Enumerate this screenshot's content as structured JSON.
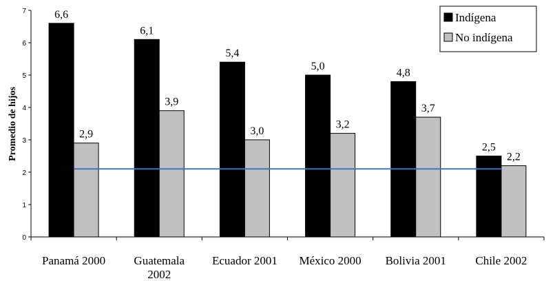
{
  "chart_data": {
    "type": "bar",
    "title": "",
    "xlabel": "",
    "ylabel": "Promedio de hijos",
    "ylim": [
      0,
      7
    ],
    "y_ticks": [
      0,
      1,
      2,
      3,
      4,
      5,
      6,
      7
    ],
    "categories": [
      [
        "Panamá 2000"
      ],
      [
        "Guatemala",
        "2002"
      ],
      [
        "Ecuador 2001"
      ],
      [
        "México 2000"
      ],
      [
        "Bolivia 2001"
      ],
      [
        "Chile 2002"
      ]
    ],
    "series": [
      {
        "name": "Indígena",
        "color": "#000000",
        "values": [
          6.6,
          6.1,
          5.4,
          5.0,
          4.8,
          2.5
        ],
        "labels": [
          "6,6",
          "6,1",
          "5,4",
          "5,0",
          "4,8",
          "2,5"
        ]
      },
      {
        "name": "No indígena",
        "color": "#c0c0c0",
        "values": [
          2.9,
          3.9,
          3.0,
          3.2,
          3.7,
          2.2
        ],
        "labels": [
          "2,9",
          "3,9",
          "3,0",
          "3,2",
          "3,7",
          "2,2"
        ]
      }
    ],
    "reference_line": {
      "value": 2.1,
      "color": "#4472c4"
    },
    "legend": {
      "position": "top-right",
      "border": true
    },
    "grid": false
  }
}
